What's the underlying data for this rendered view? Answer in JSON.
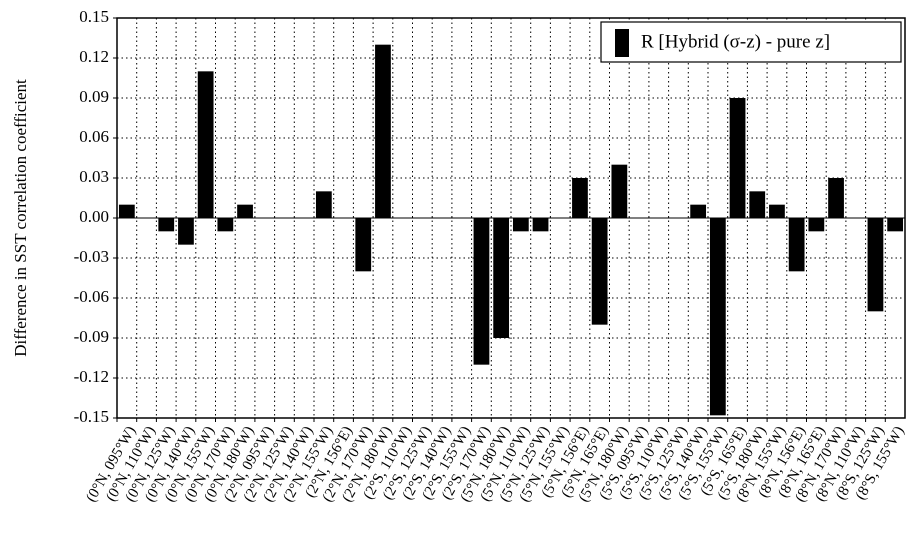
{
  "chart_data": {
    "type": "bar",
    "y_label": "Difference in SST correlation coefficient",
    "categories": [
      "(0°N, 095°W)",
      "(0°N, 110°W)",
      "(0°N, 125°W)",
      "(0°N, 140°W)",
      "(0°N, 155°W)",
      "(0°N, 170°W)",
      "(0°N, 180°W)",
      "(2°N, 095°W)",
      "(2°N, 125°W)",
      "(2°N, 140°W)",
      "(2°N, 155°W)",
      "(2°N, 156°E)",
      "(2°N, 170°W)",
      "(2°N, 180°W)",
      "(2°S, 110°W)",
      "(2°S, 125°W)",
      "(2°S, 140°W)",
      "(2°S, 155°W)",
      "(2°S, 170°W)",
      "(5°N, 180°W)",
      "(5°N, 110°W)",
      "(5°N, 125°W)",
      "(5°N, 155°W)",
      "(5°N, 156°E)",
      "(5°N, 165°E)",
      "(5°N, 180°W)",
      "(5°S, 095°W)",
      "(5°S, 110°W)",
      "(5°S, 125°W)",
      "(5°S, 140°W)",
      "(5°S, 155°W)",
      "(5°S, 165°E)",
      "(5°S, 180°W)",
      "(8°N, 155°W)",
      "(8°N, 156°E)",
      "(8°N, 165°E)",
      "(8°N, 170°W)",
      "(8°N, 110°W)",
      "(8°S, 125°W)",
      "(8°S, 155°W)"
    ],
    "series": [
      {
        "name": "R [Hybrid (σ-z) - pure z]",
        "color": "#000000",
        "values": [
          0.01,
          0,
          -0.01,
          -0.02,
          0.11,
          -0.01,
          0.01,
          0,
          0,
          0,
          0.02,
          0,
          -0.04,
          0.13,
          0,
          0,
          0,
          0,
          -0.11,
          -0.09,
          -0.01,
          -0.01,
          0,
          0.03,
          -0.08,
          0.04,
          0,
          0,
          0,
          0.01,
          -0.148,
          0.09,
          0.02,
          0.01,
          -0.04,
          -0.01,
          0.03,
          0,
          -0.07,
          -0.01
        ]
      }
    ],
    "ylim": [
      -0.15,
      0.15
    ],
    "yticks": [
      -0.15,
      -0.12,
      -0.09,
      -0.06,
      -0.03,
      {
        "value": 0,
        "label": "0.00"
      },
      0.03,
      0.06,
      0.09,
      0.12,
      0.15
    ],
    "grid": true,
    "legend": "upper right"
  }
}
